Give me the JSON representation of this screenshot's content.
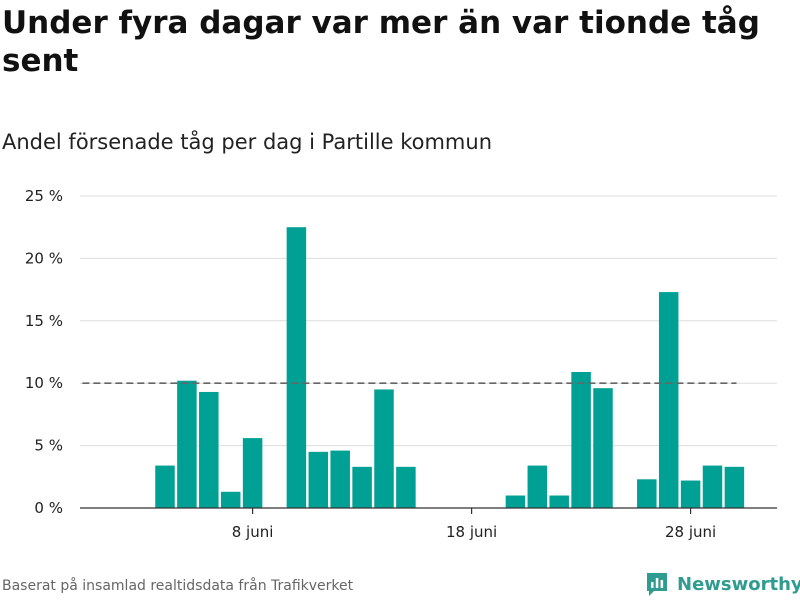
{
  "title": "Under fyra dagar var mer än var tionde tåg sent",
  "subtitle": "Andel försenade tåg per dag i Partille kommun",
  "footer": "Baserat på insamlad realtidsdata från Trafikverket",
  "brand": {
    "name": "Newsworthy",
    "icon": "newsworthy-logo-icon"
  },
  "colors": {
    "bar": "#00a095",
    "reference_line": "#666666",
    "grid": "#dddddd",
    "axis": "#333333",
    "brand": "#2f9c8f"
  },
  "chart_data": {
    "type": "bar",
    "title": "Under fyra dagar var mer än var tionde tåg sent",
    "subtitle": "Andel försenade tåg per dag i Partille kommun",
    "xlabel": "",
    "ylabel": "",
    "unit": "%",
    "ylim": [
      0,
      25
    ],
    "y_ticks": [
      0,
      5,
      10,
      15,
      20,
      25
    ],
    "y_tick_labels": [
      "0 %",
      "5 %",
      "10 %",
      "15 %",
      "20 %",
      "25 %"
    ],
    "x_ticks": [
      "8 juni",
      "18 juni",
      "28 juni"
    ],
    "x_tick_days": [
      8,
      18,
      28
    ],
    "grid": true,
    "reference_line": {
      "value": 10,
      "style": "dashed",
      "from_day": 0.5,
      "to_day": 29.5
    },
    "days": [
      1,
      2,
      3,
      4,
      5,
      6,
      7,
      8,
      9,
      10,
      11,
      12,
      13,
      14,
      15,
      16,
      17,
      18,
      19,
      20,
      21,
      22,
      23,
      24,
      25,
      26,
      27,
      28,
      29,
      30
    ],
    "values": [
      null,
      null,
      null,
      3.4,
      10.2,
      9.3,
      1.3,
      5.6,
      null,
      22.5,
      4.5,
      4.6,
      3.3,
      9.5,
      3.3,
      null,
      null,
      null,
      null,
      1.0,
      3.4,
      1.0,
      10.9,
      9.6,
      null,
      2.3,
      17.3,
      2.2,
      3.4,
      3.3
    ]
  }
}
